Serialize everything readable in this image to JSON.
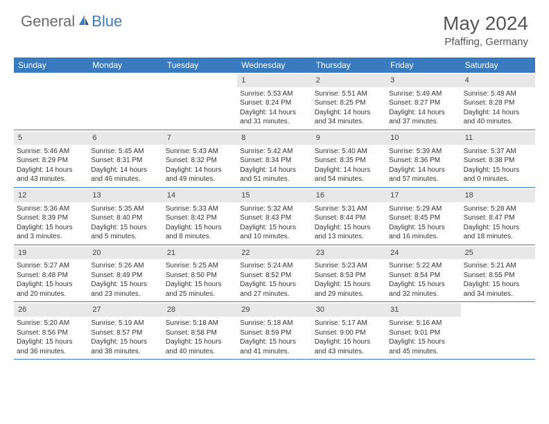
{
  "brand": {
    "part1": "General",
    "part2": "Blue"
  },
  "title": "May 2024",
  "location": "Pfaffing, Germany",
  "colors": {
    "header_bg": "#3a7bc0",
    "brand_gray": "#6b6b6b",
    "brand_blue": "#3a7bc0",
    "daynum_bg": "#e8e8e8",
    "text": "#333333"
  },
  "day_names": [
    "Sunday",
    "Monday",
    "Tuesday",
    "Wednesday",
    "Thursday",
    "Friday",
    "Saturday"
  ],
  "weeks": [
    [
      {
        "empty": true
      },
      {
        "empty": true
      },
      {
        "empty": true
      },
      {
        "n": "1",
        "sr": "Sunrise: 5:53 AM",
        "ss": "Sunset: 8:24 PM",
        "dl": "Daylight: 14 hours and 31 minutes."
      },
      {
        "n": "2",
        "sr": "Sunrise: 5:51 AM",
        "ss": "Sunset: 8:25 PM",
        "dl": "Daylight: 14 hours and 34 minutes."
      },
      {
        "n": "3",
        "sr": "Sunrise: 5:49 AM",
        "ss": "Sunset: 8:27 PM",
        "dl": "Daylight: 14 hours and 37 minutes."
      },
      {
        "n": "4",
        "sr": "Sunrise: 5:48 AM",
        "ss": "Sunset: 8:28 PM",
        "dl": "Daylight: 14 hours and 40 minutes."
      }
    ],
    [
      {
        "n": "5",
        "sr": "Sunrise: 5:46 AM",
        "ss": "Sunset: 8:29 PM",
        "dl": "Daylight: 14 hours and 43 minutes."
      },
      {
        "n": "6",
        "sr": "Sunrise: 5:45 AM",
        "ss": "Sunset: 8:31 PM",
        "dl": "Daylight: 14 hours and 46 minutes."
      },
      {
        "n": "7",
        "sr": "Sunrise: 5:43 AM",
        "ss": "Sunset: 8:32 PM",
        "dl": "Daylight: 14 hours and 49 minutes."
      },
      {
        "n": "8",
        "sr": "Sunrise: 5:42 AM",
        "ss": "Sunset: 8:34 PM",
        "dl": "Daylight: 14 hours and 51 minutes."
      },
      {
        "n": "9",
        "sr": "Sunrise: 5:40 AM",
        "ss": "Sunset: 8:35 PM",
        "dl": "Daylight: 14 hours and 54 minutes."
      },
      {
        "n": "10",
        "sr": "Sunrise: 5:39 AM",
        "ss": "Sunset: 8:36 PM",
        "dl": "Daylight: 14 hours and 57 minutes."
      },
      {
        "n": "11",
        "sr": "Sunrise: 5:37 AM",
        "ss": "Sunset: 8:38 PM",
        "dl": "Daylight: 15 hours and 0 minutes."
      }
    ],
    [
      {
        "n": "12",
        "sr": "Sunrise: 5:36 AM",
        "ss": "Sunset: 8:39 PM",
        "dl": "Daylight: 15 hours and 3 minutes."
      },
      {
        "n": "13",
        "sr": "Sunrise: 5:35 AM",
        "ss": "Sunset: 8:40 PM",
        "dl": "Daylight: 15 hours and 5 minutes."
      },
      {
        "n": "14",
        "sr": "Sunrise: 5:33 AM",
        "ss": "Sunset: 8:42 PM",
        "dl": "Daylight: 15 hours and 8 minutes."
      },
      {
        "n": "15",
        "sr": "Sunrise: 5:32 AM",
        "ss": "Sunset: 8:43 PM",
        "dl": "Daylight: 15 hours and 10 minutes."
      },
      {
        "n": "16",
        "sr": "Sunrise: 5:31 AM",
        "ss": "Sunset: 8:44 PM",
        "dl": "Daylight: 15 hours and 13 minutes."
      },
      {
        "n": "17",
        "sr": "Sunrise: 5:29 AM",
        "ss": "Sunset: 8:45 PM",
        "dl": "Daylight: 15 hours and 16 minutes."
      },
      {
        "n": "18",
        "sr": "Sunrise: 5:28 AM",
        "ss": "Sunset: 8:47 PM",
        "dl": "Daylight: 15 hours and 18 minutes."
      }
    ],
    [
      {
        "n": "19",
        "sr": "Sunrise: 5:27 AM",
        "ss": "Sunset: 8:48 PM",
        "dl": "Daylight: 15 hours and 20 minutes."
      },
      {
        "n": "20",
        "sr": "Sunrise: 5:26 AM",
        "ss": "Sunset: 8:49 PM",
        "dl": "Daylight: 15 hours and 23 minutes."
      },
      {
        "n": "21",
        "sr": "Sunrise: 5:25 AM",
        "ss": "Sunset: 8:50 PM",
        "dl": "Daylight: 15 hours and 25 minutes."
      },
      {
        "n": "22",
        "sr": "Sunrise: 5:24 AM",
        "ss": "Sunset: 8:52 PM",
        "dl": "Daylight: 15 hours and 27 minutes."
      },
      {
        "n": "23",
        "sr": "Sunrise: 5:23 AM",
        "ss": "Sunset: 8:53 PM",
        "dl": "Daylight: 15 hours and 29 minutes."
      },
      {
        "n": "24",
        "sr": "Sunrise: 5:22 AM",
        "ss": "Sunset: 8:54 PM",
        "dl": "Daylight: 15 hours and 32 minutes."
      },
      {
        "n": "25",
        "sr": "Sunrise: 5:21 AM",
        "ss": "Sunset: 8:55 PM",
        "dl": "Daylight: 15 hours and 34 minutes."
      }
    ],
    [
      {
        "n": "26",
        "sr": "Sunrise: 5:20 AM",
        "ss": "Sunset: 8:56 PM",
        "dl": "Daylight: 15 hours and 36 minutes."
      },
      {
        "n": "27",
        "sr": "Sunrise: 5:19 AM",
        "ss": "Sunset: 8:57 PM",
        "dl": "Daylight: 15 hours and 38 minutes."
      },
      {
        "n": "28",
        "sr": "Sunrise: 5:18 AM",
        "ss": "Sunset: 8:58 PM",
        "dl": "Daylight: 15 hours and 40 minutes."
      },
      {
        "n": "29",
        "sr": "Sunrise: 5:18 AM",
        "ss": "Sunset: 8:59 PM",
        "dl": "Daylight: 15 hours and 41 minutes."
      },
      {
        "n": "30",
        "sr": "Sunrise: 5:17 AM",
        "ss": "Sunset: 9:00 PM",
        "dl": "Daylight: 15 hours and 43 minutes."
      },
      {
        "n": "31",
        "sr": "Sunrise: 5:16 AM",
        "ss": "Sunset: 9:01 PM",
        "dl": "Daylight: 15 hours and 45 minutes."
      },
      {
        "empty": true
      }
    ]
  ]
}
